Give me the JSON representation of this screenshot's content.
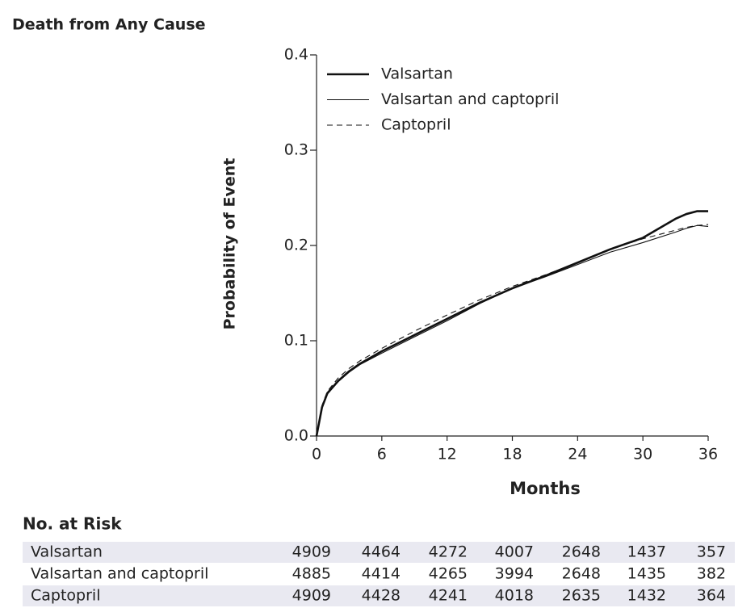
{
  "chart_data": {
    "type": "line",
    "title": "Death from Any Cause",
    "x_label": "Months",
    "y_label": "Probability of Event",
    "x": [
      0,
      0.5,
      1,
      2,
      3,
      4,
      6,
      9,
      12,
      15,
      18,
      21,
      24,
      27,
      30,
      33,
      34,
      35,
      36
    ],
    "series": [
      {
        "name": "Valsartan",
        "color": "#111111",
        "line_width": 2.6,
        "dash": "none",
        "values": [
          0,
          0.03,
          0.045,
          0.058,
          0.068,
          0.076,
          0.089,
          0.106,
          0.123,
          0.14,
          0.155,
          0.168,
          0.182,
          0.196,
          0.208,
          0.228,
          0.233,
          0.236,
          0.236
        ]
      },
      {
        "name": "Valsartan and captopril",
        "color": "#111111",
        "line_width": 1.1,
        "dash": "none",
        "values": [
          0,
          0.03,
          0.044,
          0.057,
          0.067,
          0.075,
          0.087,
          0.104,
          0.121,
          0.139,
          0.155,
          0.167,
          0.18,
          0.193,
          0.203,
          0.214,
          0.218,
          0.221,
          0.22
        ]
      },
      {
        "name": "Captopril",
        "color": "#111111",
        "line_width": 1.1,
        "dash": "7 5",
        "values": [
          0,
          0.032,
          0.047,
          0.061,
          0.071,
          0.079,
          0.092,
          0.11,
          0.127,
          0.143,
          0.157,
          0.169,
          0.182,
          0.196,
          0.207,
          0.216,
          0.219,
          0.221,
          0.222
        ]
      }
    ],
    "xlim": [
      0,
      36
    ],
    "ylim": [
      0,
      0.4
    ],
    "xticks": [
      0,
      6,
      12,
      18,
      24,
      30,
      36
    ],
    "yticks": [
      {
        "value": 0,
        "label": "0.0"
      },
      0.1,
      0.2,
      0.3,
      0.4
    ],
    "grid": false,
    "legend": "top-left"
  },
  "risk_table": {
    "title": "No. at Risk",
    "rows": [
      {
        "name": "Valsartan",
        "values": [
          4909,
          4464,
          4272,
          4007,
          2648,
          1437,
          357
        ]
      },
      {
        "name": "Valsartan and captopril",
        "values": [
          4885,
          4414,
          4265,
          3994,
          2648,
          1435,
          382
        ]
      },
      {
        "name": "Captopril",
        "values": [
          4909,
          4428,
          4241,
          4018,
          2635,
          1432,
          364
        ]
      }
    ]
  }
}
